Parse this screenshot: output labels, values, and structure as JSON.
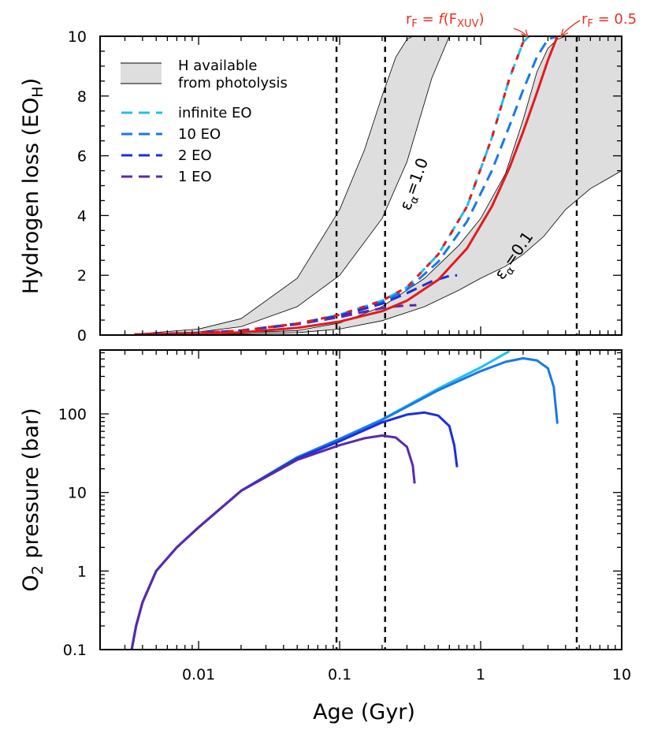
{
  "colors": {
    "infinite": "#1ec0f0",
    "eo10": "#1a78e6",
    "eo2": "#1a2ee0",
    "eo1": "#5a2aa8",
    "red": "#e31a1c",
    "band": "#dedede",
    "vline": "#000000"
  },
  "chart_data": [
    {
      "type": "line",
      "panel": "top",
      "ylabel_main": "Hydrogen loss (EO",
      "ylabel_sub": "H",
      "ylabel_close": ")",
      "x_scale": "log",
      "xlim": [
        0.002,
        10
      ],
      "ylim": [
        0,
        10
      ],
      "yticks": [
        0,
        2,
        4,
        6,
        8,
        10
      ],
      "vlines": [
        0.095,
        0.21,
        4.8
      ],
      "bands": [
        {
          "label": "εα=1.0",
          "lower": {
            "x": [
              0.0035,
              0.01,
              0.02,
              0.05,
              0.1,
              0.2,
              0.3,
              0.45,
              0.6
            ],
            "y": [
              0.02,
              0.1,
              0.28,
              0.95,
              2.0,
              3.9,
              5.8,
              8.6,
              10
            ]
          },
          "upper": {
            "x": [
              0.0035,
              0.01,
              0.02,
              0.05,
              0.1,
              0.15,
              0.2,
              0.25,
              0.3,
              0.33
            ],
            "y": [
              0.03,
              0.2,
              0.55,
              1.9,
              4.2,
              6.2,
              8.0,
              9.3,
              9.9,
              10
            ]
          }
        },
        {
          "label": "εα=0.1",
          "lower": {
            "x": [
              0.0035,
              0.01,
              0.05,
              0.1,
              0.2,
              0.4,
              0.7,
              1.0,
              1.5,
              2.0,
              2.8,
              4.0,
              6.0,
              10
            ],
            "y": [
              0.0,
              0.01,
              0.08,
              0.2,
              0.48,
              0.95,
              1.5,
              1.9,
              2.3,
              2.7,
              3.3,
              4.2,
              4.9,
              5.5
            ]
          },
          "upper": {
            "x": [
              0.0035,
              0.01,
              0.05,
              0.1,
              0.2,
              0.4,
              0.7,
              1.0,
              1.5,
              2.0,
              2.5,
              3.0,
              3.5,
              4.0,
              10
            ],
            "y": [
              0.01,
              0.02,
              0.15,
              0.4,
              0.95,
              1.9,
              3.0,
              3.9,
              5.4,
              7.2,
              8.8,
              9.6,
              9.9,
              10,
              10
            ]
          }
        }
      ],
      "series": [
        {
          "name": "infinite EO",
          "color": "#1ec0f0",
          "dash": "14,8",
          "x": [
            0.0035,
            0.01,
            0.02,
            0.05,
            0.1,
            0.2,
            0.3,
            0.5,
            0.8,
            1.2,
            1.6,
            2.0,
            2.2
          ],
          "y": [
            0.02,
            0.07,
            0.15,
            0.38,
            0.68,
            1.15,
            1.6,
            2.7,
            4.3,
            6.6,
            8.6,
            9.8,
            10
          ]
        },
        {
          "name": "10 EO",
          "color": "#1a78e6",
          "dash": "14,8",
          "x": [
            0.0035,
            0.01,
            0.02,
            0.05,
            0.1,
            0.2,
            0.3,
            0.5,
            0.8,
            1.2,
            1.6,
            2.0,
            2.5,
            3.0,
            3.5
          ],
          "y": [
            0.02,
            0.07,
            0.15,
            0.38,
            0.66,
            1.1,
            1.52,
            2.45,
            3.8,
            5.5,
            7.0,
            8.2,
            9.3,
            9.9,
            10
          ]
        },
        {
          "name": "2 EO",
          "color": "#1a2ee0",
          "dash": "14,8",
          "x": [
            0.0035,
            0.01,
            0.02,
            0.05,
            0.1,
            0.2,
            0.3,
            0.45,
            0.6,
            0.68
          ],
          "y": [
            0.02,
            0.07,
            0.15,
            0.38,
            0.64,
            1.05,
            1.4,
            1.8,
            1.98,
            2.0
          ]
        },
        {
          "name": "1 EO",
          "color": "#5a2aa8",
          "dash": "14,8",
          "x": [
            0.0035,
            0.01,
            0.02,
            0.05,
            0.1,
            0.15,
            0.2,
            0.25,
            0.3,
            0.35
          ],
          "y": [
            0.02,
            0.07,
            0.15,
            0.36,
            0.6,
            0.78,
            0.9,
            0.96,
            0.99,
            1.0
          ]
        },
        {
          "name": "rF = f(FXUV) red",
          "color": "#e31a1c",
          "dash": "7,10",
          "x": [
            0.0035,
            0.01,
            0.02,
            0.05,
            0.1,
            0.2,
            0.3,
            0.5,
            0.8,
            1.2,
            1.6,
            2.0,
            2.2
          ],
          "y": [
            0.02,
            0.07,
            0.15,
            0.38,
            0.68,
            1.15,
            1.6,
            2.7,
            4.3,
            6.6,
            8.6,
            9.8,
            10
          ]
        },
        {
          "name": "rF = 0.5 red",
          "color": "#e31a1c",
          "dash": "",
          "x": [
            0.0035,
            0.01,
            0.02,
            0.05,
            0.1,
            0.2,
            0.3,
            0.5,
            0.8,
            1.2,
            1.6,
            2.0,
            2.5,
            3.0,
            3.5
          ],
          "y": [
            0.01,
            0.04,
            0.09,
            0.24,
            0.45,
            0.8,
            1.15,
            1.85,
            2.9,
            4.3,
            5.6,
            6.8,
            8.1,
            9.2,
            10
          ]
        }
      ],
      "legend": {
        "band_label_line1": "H available",
        "band_label_line2": "from photolysis",
        "entries": [
          "infinite EO",
          "10 EO",
          "2 EO",
          "1 EO"
        ]
      },
      "annotations": {
        "rf_fxuv_pre": "r",
        "rf_fxuv_sub": "F",
        "rf_fxuv_eq": " = ",
        "rf_fxuv_f": "f",
        "rf_fxuv_open": "(F",
        "rf_fxuv_sub2": "XUV",
        "rf_fxuv_close": ")",
        "rf_half_pre": "r",
        "rf_half_sub": "F",
        "rf_half_rest": " = 0.5",
        "eps_sym": "ε",
        "eps_sub": "α",
        "eps_1_val": "=1.0",
        "eps_2_val": "=0.1"
      }
    },
    {
      "type": "line",
      "panel": "bottom",
      "ylabel_main": "O",
      "ylabel_sub": "2",
      "ylabel_rest": " pressure (bar)",
      "xlabel": "Age (Gyr)",
      "x_scale": "log",
      "y_scale": "log",
      "xlim": [
        0.002,
        10
      ],
      "ylim": [
        0.1,
        650
      ],
      "yticks": [
        0.1,
        1,
        10,
        100
      ],
      "ytick_labels": [
        "0.1",
        "1",
        "10",
        "100"
      ],
      "xticks": [
        0.01,
        0.1,
        1,
        10
      ],
      "xtick_labels": [
        "0.01",
        "0.1",
        "1",
        "10"
      ],
      "vlines": [
        0.095,
        0.21,
        4.8
      ],
      "series": [
        {
          "name": "infinite EO",
          "color": "#1ec0f0",
          "x": [
            0.00335,
            0.0036,
            0.004,
            0.005,
            0.007,
            0.01,
            0.02,
            0.05,
            0.1,
            0.2,
            0.5,
            1.0,
            1.6
          ],
          "y": [
            0.1,
            0.2,
            0.4,
            1.0,
            2.0,
            3.6,
            10.5,
            28,
            48,
            85,
            210,
            390,
            630
          ]
        },
        {
          "name": "10 EO",
          "color": "#1a78e6",
          "x": [
            0.00335,
            0.0036,
            0.004,
            0.005,
            0.007,
            0.01,
            0.02,
            0.05,
            0.1,
            0.2,
            0.5,
            1.0,
            1.5,
            2.0,
            2.5,
            3.0,
            3.3,
            3.5
          ],
          "y": [
            0.1,
            0.2,
            0.4,
            1.0,
            2.0,
            3.6,
            10.5,
            28,
            48,
            84,
            200,
            350,
            460,
            510,
            480,
            380,
            220,
            75
          ]
        },
        {
          "name": "2 EO",
          "color": "#1a2ee0",
          "x": [
            0.00335,
            0.0036,
            0.004,
            0.005,
            0.007,
            0.01,
            0.02,
            0.05,
            0.1,
            0.2,
            0.3,
            0.4,
            0.5,
            0.6,
            0.65,
            0.68
          ],
          "y": [
            0.1,
            0.2,
            0.4,
            1.0,
            2.0,
            3.6,
            10.5,
            27,
            45,
            78,
            98,
            104,
            95,
            70,
            40,
            21
          ]
        },
        {
          "name": "1 EO",
          "color": "#5a2aa8",
          "x": [
            0.00335,
            0.0036,
            0.004,
            0.005,
            0.007,
            0.01,
            0.02,
            0.05,
            0.1,
            0.15,
            0.2,
            0.25,
            0.3,
            0.33,
            0.34
          ],
          "y": [
            0.1,
            0.2,
            0.4,
            1.0,
            2.0,
            3.6,
            10.5,
            26,
            40,
            49,
            53,
            50,
            38,
            22,
            13
          ]
        }
      ]
    }
  ]
}
